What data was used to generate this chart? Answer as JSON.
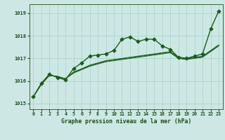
{
  "background_color": "#cde8e4",
  "grid_color": "#a8cfc8",
  "line_color": "#1a5c1a",
  "title": "Graphe pression niveau de la mer (hPa)",
  "xlim": [
    -0.5,
    23.5
  ],
  "ylim": [
    1014.75,
    1019.4
  ],
  "yticks": [
    1015,
    1016,
    1017,
    1018,
    1019
  ],
  "xticks": [
    0,
    1,
    2,
    3,
    4,
    5,
    6,
    7,
    8,
    9,
    10,
    11,
    12,
    13,
    14,
    15,
    16,
    17,
    18,
    19,
    20,
    21,
    22,
    23
  ],
  "series_smooth": [
    [
      1015.3,
      1015.85,
      1016.25,
      1016.2,
      1016.1,
      1016.35,
      1016.5,
      1016.65,
      1016.75,
      1016.85,
      1016.9,
      1016.95,
      1017.0,
      1017.05,
      1017.1,
      1017.15,
      1017.2,
      1017.25,
      1017.0,
      1016.95,
      1017.0,
      1017.05,
      1017.3,
      1017.55
    ],
    [
      1015.3,
      1015.85,
      1016.25,
      1016.2,
      1016.1,
      1016.38,
      1016.52,
      1016.68,
      1016.78,
      1016.88,
      1016.93,
      1016.98,
      1017.03,
      1017.08,
      1017.13,
      1017.18,
      1017.23,
      1017.28,
      1017.03,
      1016.98,
      1017.03,
      1017.08,
      1017.33,
      1017.58
    ],
    [
      1015.3,
      1015.85,
      1016.25,
      1016.2,
      1016.1,
      1016.4,
      1016.54,
      1016.7,
      1016.8,
      1016.9,
      1016.95,
      1017.0,
      1017.05,
      1017.1,
      1017.15,
      1017.2,
      1017.25,
      1017.3,
      1017.05,
      1017.0,
      1017.05,
      1017.1,
      1017.35,
      1017.6
    ]
  ],
  "series_main": [
    1015.3,
    1015.9,
    1016.3,
    1016.15,
    1016.05,
    1016.55,
    1016.8,
    1017.1,
    1017.15,
    1017.2,
    1017.35,
    1017.85,
    1017.95,
    1017.75,
    1017.85,
    1017.85,
    1017.55,
    1017.4,
    1017.05,
    1017.0,
    1017.1,
    1017.2,
    1018.3,
    1019.1
  ],
  "marker": "D",
  "markersize": 2.8,
  "linewidth_main": 1.0,
  "linewidth_smooth": 0.7
}
